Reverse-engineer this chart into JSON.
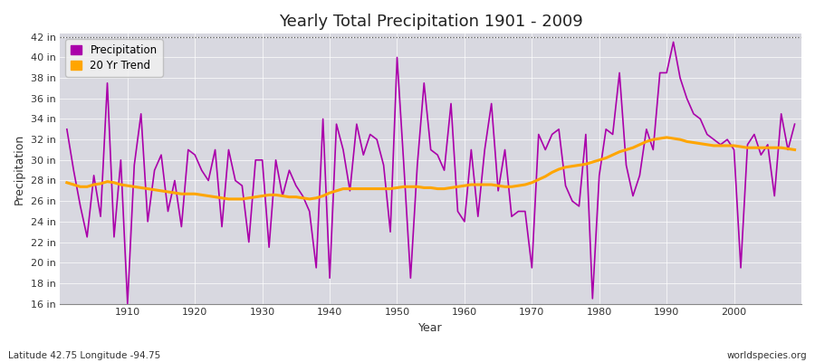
{
  "title": "Yearly Total Precipitation 1901 - 2009",
  "xlabel": "Year",
  "ylabel": "Precipitation",
  "subtitle_left": "Latitude 42.75 Longitude -94.75",
  "subtitle_right": "worldspecies.org",
  "legend_entries": [
    "Precipitation",
    "20 Yr Trend"
  ],
  "precip_color": "#AA00AA",
  "trend_color": "#FFA500",
  "fig_bg_color": "#FFFFFF",
  "plot_bg_color": "#D8D8E0",
  "ylim_min": 16,
  "ylim_max": 42,
  "ytick_step": 2,
  "years": [
    1901,
    1902,
    1903,
    1904,
    1905,
    1906,
    1907,
    1908,
    1909,
    1910,
    1911,
    1912,
    1913,
    1914,
    1915,
    1916,
    1917,
    1918,
    1919,
    1920,
    1921,
    1922,
    1923,
    1924,
    1925,
    1926,
    1927,
    1928,
    1929,
    1930,
    1931,
    1932,
    1933,
    1934,
    1935,
    1936,
    1937,
    1938,
    1939,
    1940,
    1941,
    1942,
    1943,
    1944,
    1945,
    1946,
    1947,
    1948,
    1949,
    1950,
    1951,
    1952,
    1953,
    1954,
    1955,
    1956,
    1957,
    1958,
    1959,
    1960,
    1961,
    1962,
    1963,
    1964,
    1965,
    1966,
    1967,
    1968,
    1969,
    1970,
    1971,
    1972,
    1973,
    1974,
    1975,
    1976,
    1977,
    1978,
    1979,
    1980,
    1981,
    1982,
    1983,
    1984,
    1985,
    1986,
    1987,
    1988,
    1989,
    1990,
    1991,
    1992,
    1993,
    1994,
    1995,
    1996,
    1997,
    1998,
    1999,
    2000,
    2001,
    2002,
    2003,
    2004,
    2005,
    2006,
    2007,
    2008,
    2009
  ],
  "precip": [
    33.0,
    29.0,
    25.5,
    22.5,
    28.5,
    24.5,
    37.5,
    22.5,
    30.0,
    16.0,
    29.5,
    34.5,
    24.0,
    29.0,
    30.5,
    25.0,
    28.0,
    23.5,
    31.0,
    30.5,
    29.0,
    28.0,
    31.0,
    23.5,
    31.0,
    28.0,
    27.5,
    22.0,
    30.0,
    30.0,
    21.5,
    30.0,
    26.5,
    29.0,
    27.5,
    26.5,
    25.0,
    19.5,
    34.0,
    18.5,
    33.5,
    31.0,
    27.0,
    33.5,
    30.5,
    32.5,
    32.0,
    29.5,
    23.0,
    40.0,
    29.5,
    18.5,
    29.5,
    37.5,
    31.0,
    30.5,
    29.0,
    35.5,
    25.0,
    24.0,
    31.0,
    24.5,
    31.0,
    35.5,
    27.0,
    31.0,
    24.5,
    25.0,
    25.0,
    19.5,
    32.5,
    31.0,
    32.5,
    33.0,
    27.5,
    26.0,
    25.5,
    32.5,
    16.5,
    28.5,
    33.0,
    32.5,
    38.5,
    29.5,
    26.5,
    28.5,
    33.0,
    31.0,
    38.5,
    38.5,
    41.5,
    38.0,
    36.0,
    34.5,
    34.0,
    32.5,
    32.0,
    31.5,
    32.0,
    31.0,
    19.5,
    31.5,
    32.5,
    30.5,
    31.5,
    26.5,
    34.5,
    31.0,
    33.5
  ],
  "trend": [
    27.8,
    27.6,
    27.4,
    27.4,
    27.6,
    27.7,
    27.9,
    27.8,
    27.6,
    27.5,
    27.4,
    27.3,
    27.2,
    27.1,
    27.0,
    26.9,
    26.8,
    26.7,
    26.7,
    26.7,
    26.6,
    26.5,
    26.4,
    26.3,
    26.2,
    26.2,
    26.2,
    26.3,
    26.4,
    26.5,
    26.6,
    26.6,
    26.5,
    26.4,
    26.4,
    26.3,
    26.2,
    26.3,
    26.5,
    26.8,
    27.0,
    27.2,
    27.2,
    27.2,
    27.2,
    27.2,
    27.2,
    27.2,
    27.2,
    27.3,
    27.4,
    27.4,
    27.4,
    27.3,
    27.3,
    27.2,
    27.2,
    27.3,
    27.4,
    27.5,
    27.6,
    27.6,
    27.6,
    27.6,
    27.5,
    27.4,
    27.4,
    27.5,
    27.6,
    27.8,
    28.1,
    28.4,
    28.8,
    29.1,
    29.3,
    29.4,
    29.5,
    29.6,
    29.8,
    30.0,
    30.2,
    30.5,
    30.8,
    31.0,
    31.2,
    31.5,
    31.8,
    32.0,
    32.1,
    32.2,
    32.1,
    32.0,
    31.8,
    31.7,
    31.6,
    31.5,
    31.4,
    31.4,
    31.4,
    31.4,
    31.3,
    31.2,
    31.2,
    31.2,
    31.2,
    31.2,
    31.2,
    31.1,
    31.0
  ]
}
